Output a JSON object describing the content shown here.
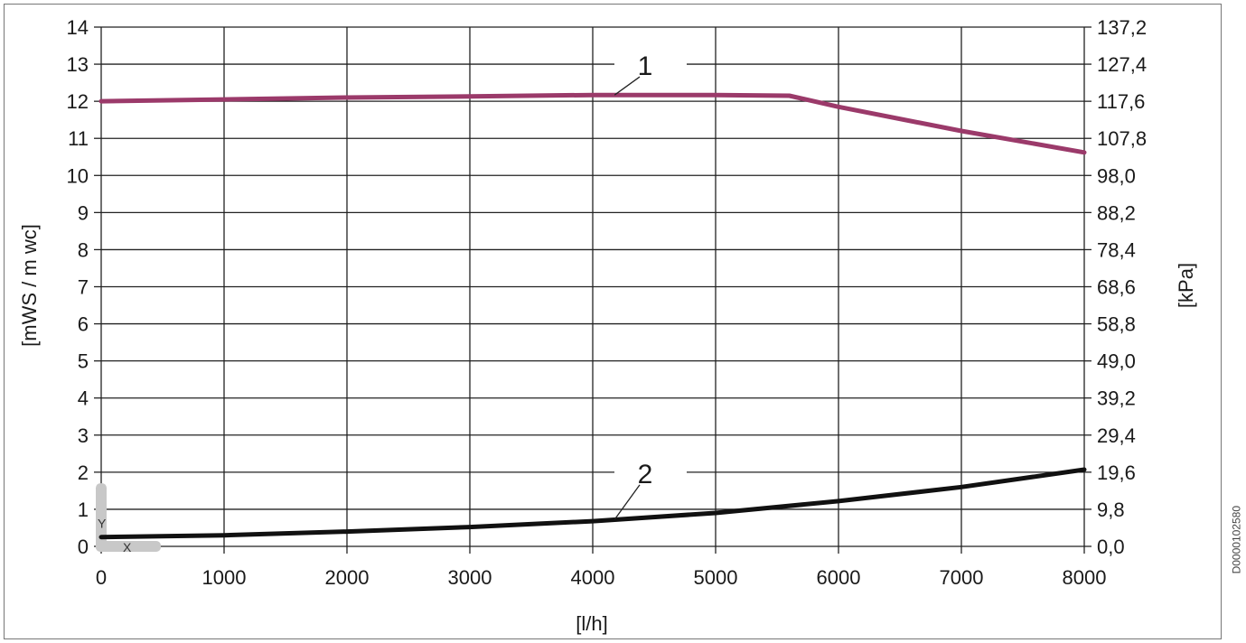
{
  "chart_data": {
    "type": "line",
    "title": "",
    "xlabel": "[l/h]",
    "ylabel": "[mWS / m wc]",
    "ylabel_right": "[kPa]",
    "xlim": [
      0,
      8000
    ],
    "ylim": [
      0,
      14
    ],
    "grid": true,
    "x_ticks": [
      "0",
      "1000",
      "2000",
      "3000",
      "4000",
      "5000",
      "6000",
      "7000",
      "8000"
    ],
    "y_ticks": [
      "0",
      "1",
      "2",
      "3",
      "4",
      "5",
      "6",
      "7",
      "8",
      "9",
      "10",
      "11",
      "12",
      "13",
      "14"
    ],
    "y_ticks_right": [
      "0,0",
      "9,8",
      "19,6",
      "29,4",
      "39,2",
      "49,0",
      "58,8",
      "68,6",
      "78,4",
      "88,2",
      "98,0",
      "107,8",
      "117,6",
      "127,4",
      "137,2"
    ],
    "series": [
      {
        "label": "1",
        "color": "#9b3a6a",
        "x": [
          0,
          1000,
          2000,
          3000,
          4000,
          5000,
          5600,
          6000,
          7000,
          8000
        ],
        "y": [
          12.0,
          12.05,
          12.1,
          12.13,
          12.17,
          12.17,
          12.15,
          11.85,
          11.2,
          10.62
        ]
      },
      {
        "label": "2",
        "color": "#111111",
        "x": [
          0,
          1000,
          2000,
          3000,
          4000,
          5000,
          6000,
          7000,
          8000
        ],
        "y": [
          0.25,
          0.3,
          0.4,
          0.52,
          0.68,
          0.9,
          1.22,
          1.6,
          2.07
        ]
      }
    ],
    "inset_axis_letters": [
      "Y",
      "X"
    ]
  },
  "doc_code": "D0000102580"
}
